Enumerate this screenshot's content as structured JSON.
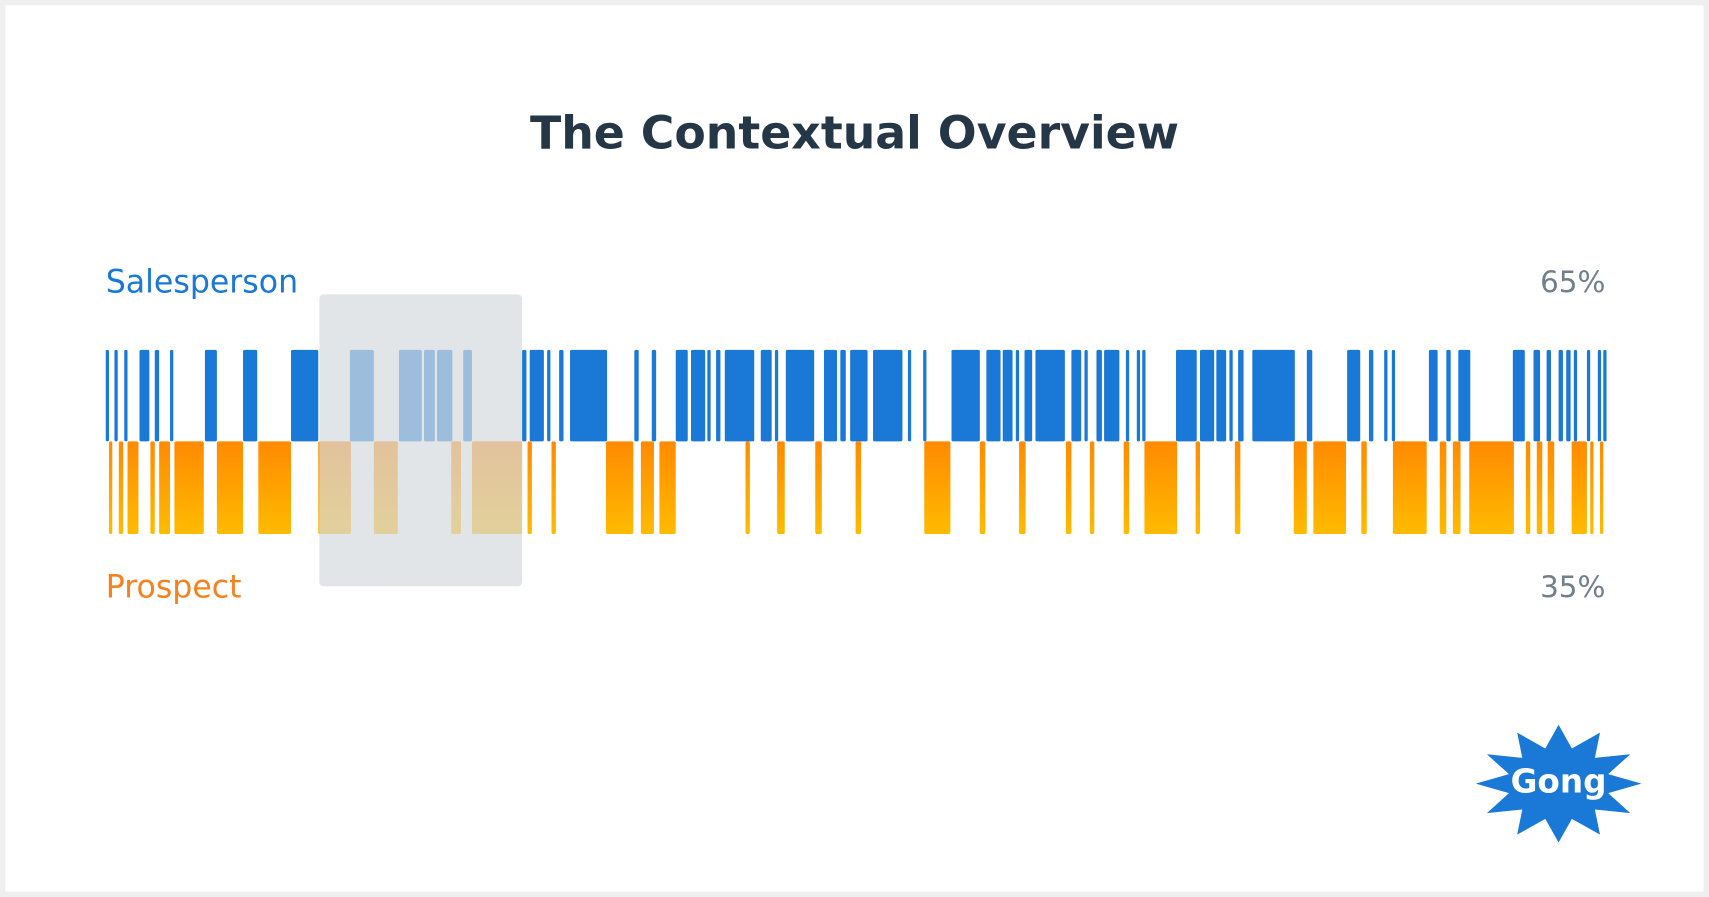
{
  "header": {
    "title": "The Contextual Overview"
  },
  "tracks": [
    {
      "label": "Salesperson",
      "share": "65%"
    },
    {
      "label": "Prospect",
      "share": "35%"
    }
  ],
  "logo": "Gong"
}
